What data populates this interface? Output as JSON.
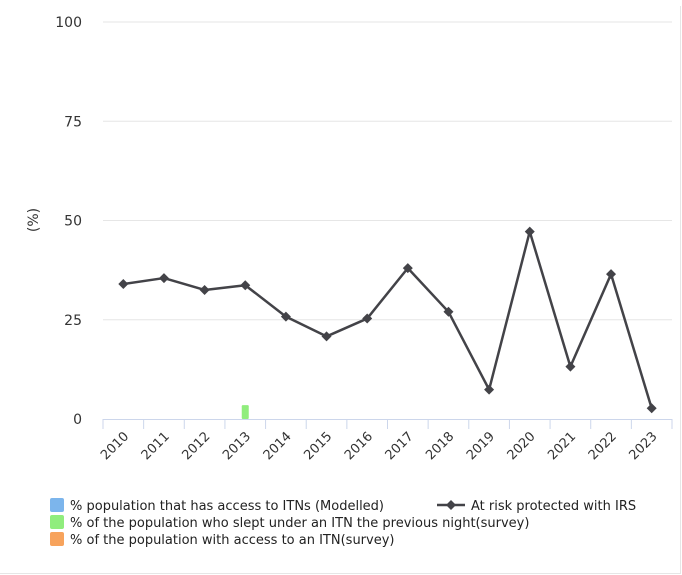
{
  "chart_data": {
    "type": "bar",
    "ylabel": "(%)",
    "ylim": [
      0,
      100
    ],
    "yticks": [
      0,
      25,
      50,
      75,
      100
    ],
    "categories": [
      "2010",
      "2011",
      "2012",
      "2013",
      "2014",
      "2015",
      "2016",
      "2017",
      "2018",
      "2019",
      "2020",
      "2021",
      "2022",
      "2023"
    ],
    "series": [
      {
        "name": "% population that has access to ITNs (Modelled)",
        "kind": "bar",
        "color": "#7cb5ec",
        "values": [
          null,
          null,
          null,
          null,
          null,
          null,
          null,
          null,
          null,
          null,
          null,
          null,
          null,
          null
        ]
      },
      {
        "name": "% of the population who slept under an ITN the previous night(survey)",
        "kind": "bar",
        "color": "#90ed7d",
        "values": [
          null,
          null,
          null,
          3.5,
          null,
          null,
          null,
          null,
          null,
          null,
          null,
          null,
          null,
          null
        ]
      },
      {
        "name": "% of the population with access to an ITN(survey)",
        "kind": "bar",
        "color": "#f7a35c",
        "values": [
          null,
          null,
          null,
          null,
          null,
          null,
          null,
          null,
          null,
          null,
          null,
          null,
          null,
          null
        ]
      },
      {
        "name": "At risk protected with IRS",
        "kind": "line",
        "marker": "diamond",
        "color": "#434348",
        "values": [
          34,
          35.5,
          32.5,
          33.7,
          25.8,
          20.8,
          25.3,
          38,
          27,
          7.4,
          47.2,
          13.2,
          36.5,
          2.7
        ]
      }
    ],
    "legend_position": "bottom",
    "grid": "horizontal"
  }
}
